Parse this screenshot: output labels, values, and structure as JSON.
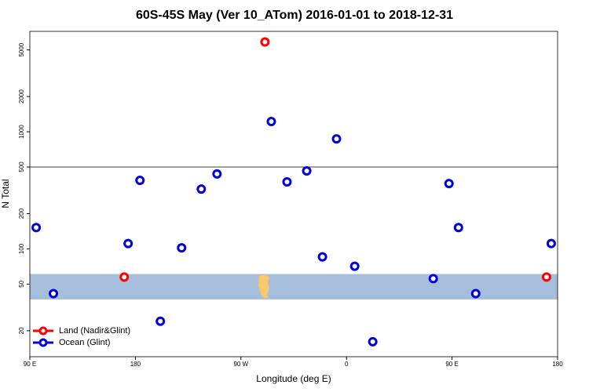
{
  "chart_data": {
    "type": "scatter",
    "title": "60S-45S May (Ver 10_ATom)   2016-01-01 to 2018-12-31",
    "xlabel": "Longitude (deg E)",
    "ylabel": "N Total",
    "log_y": true,
    "xlim": [
      90,
      540
    ],
    "ylim": [
      12,
      7200
    ],
    "xticks": [
      {
        "value": 90,
        "label": "90 E"
      },
      180,
      {
        "value": 270,
        "label": "90 W"
      },
      {
        "value": 360,
        "label": "0"
      },
      {
        "value": 450,
        "label": "90 E"
      },
      {
        "value": 540,
        "label": "180"
      }
    ],
    "yticks": [
      20,
      50,
      100,
      200,
      500,
      1000,
      2000,
      5000
    ],
    "band": [
      37,
      61
    ],
    "band_color": "#a6bddb",
    "hline": 500,
    "legend": "lower left",
    "series": [
      {
        "name": "Land (Nadir&Glint)",
        "color": "#ff0000",
        "x": [
          290.5,
          170.5,
          530.6
        ],
        "values": [
          5850,
          57.5,
          57.5
        ]
      },
      {
        "name": "Ocean (Glint)",
        "color": "#0000dd",
        "x": [
          95.4,
          110.1,
          173.8,
          183.9,
          201.3,
          219.4,
          236.2,
          249.6,
          295.9,
          309.3,
          326.1,
          339.5,
          351.5,
          367,
          382.4,
          434,
          447.4,
          455.5,
          470.2,
          534.6
        ],
        "values": [
          152,
          41.5,
          111,
          385,
          24.1,
          102,
          324,
          436,
          1224,
          373,
          463,
          85.5,
          869,
          71,
          16.1,
          55.7,
          361,
          152,
          41.5,
          111
        ]
      }
    ]
  }
}
